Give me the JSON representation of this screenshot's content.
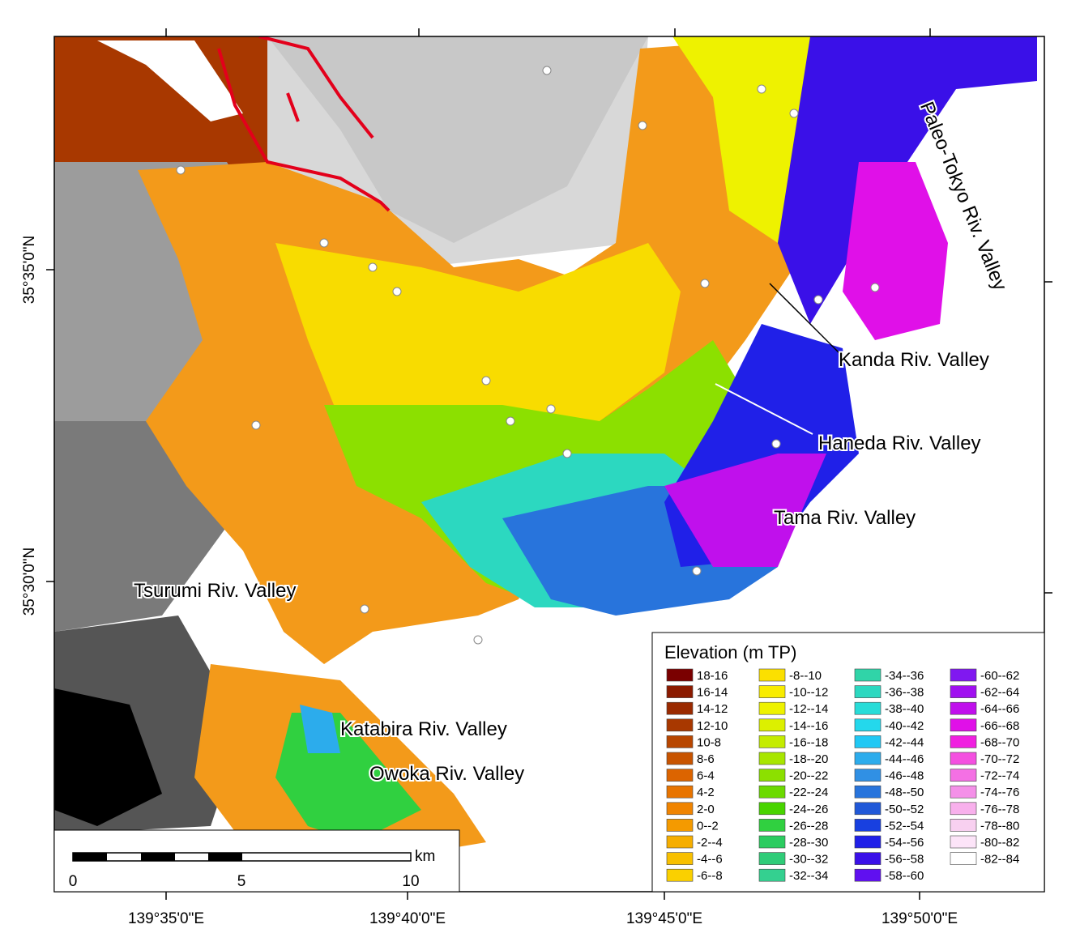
{
  "map": {
    "x_labels": [
      "139°35'0\"E",
      "139°40'0\"E",
      "139°45'0\"E",
      "139°50'0\"E"
    ],
    "y_labels": [
      "35°35'0\"N",
      "35°30'0\"N"
    ],
    "valley_labels": [
      "Paleo-Tokyo Riv. Valley",
      "Kanda Riv. Valley",
      "Haneda Riv. Valley",
      "Tama Riv. Valley",
      "Tsurumi Riv. Valley",
      "Katabira Riv. Valley",
      "Owoka Riv. Valley"
    ],
    "legend": {
      "title": "Elevation (m TP)",
      "items": [
        {
          "label": "18-16",
          "color": "#7a0000"
        },
        {
          "label": "16-14",
          "color": "#8b1a00"
        },
        {
          "label": "14-12",
          "color": "#9a2a00"
        },
        {
          "label": "12-10",
          "color": "#a83800"
        },
        {
          "label": "10-8",
          "color": "#b84600"
        },
        {
          "label": "8-6",
          "color": "#c85400"
        },
        {
          "label": "6-4",
          "color": "#dc6400"
        },
        {
          "label": "4-2",
          "color": "#e87400"
        },
        {
          "label": "2-0",
          "color": "#f08400"
        },
        {
          "label": "0--2",
          "color": "#f49a00"
        },
        {
          "label": "-2--4",
          "color": "#f6ae00"
        },
        {
          "label": "-4--6",
          "color": "#f8c000"
        },
        {
          "label": "-6--8",
          "color": "#fad000"
        },
        {
          "label": "-8--10",
          "color": "#fbe000"
        },
        {
          "label": "-10--12",
          "color": "#f8ec00"
        },
        {
          "label": "-12--14",
          "color": "#eef200"
        },
        {
          "label": "-14--16",
          "color": "#dcf000"
        },
        {
          "label": "-16--18",
          "color": "#c4ec00"
        },
        {
          "label": "-18--20",
          "color": "#a8e600"
        },
        {
          "label": "-20--22",
          "color": "#8ce000"
        },
        {
          "label": "-22--24",
          "color": "#6cda00"
        },
        {
          "label": "-24--26",
          "color": "#48d400"
        },
        {
          "label": "-26--28",
          "color": "#30d040"
        },
        {
          "label": "-28--30",
          "color": "#2ccc60"
        },
        {
          "label": "-30--32",
          "color": "#30cc78"
        },
        {
          "label": "-32--34",
          "color": "#34d090"
        },
        {
          "label": "-34--36",
          "color": "#30d4a8"
        },
        {
          "label": "-36--38",
          "color": "#2cd8c0"
        },
        {
          "label": "-38--40",
          "color": "#28dcd8"
        },
        {
          "label": "-40--42",
          "color": "#24d8ec"
        },
        {
          "label": "-42--44",
          "color": "#20c8f4"
        },
        {
          "label": "-44--46",
          "color": "#2cacec"
        },
        {
          "label": "-46--48",
          "color": "#3090e4"
        },
        {
          "label": "-48--50",
          "color": "#2874dc"
        },
        {
          "label": "-50--52",
          "color": "#2058d8"
        },
        {
          "label": "-52--54",
          "color": "#1840e0"
        },
        {
          "label": "-54--56",
          "color": "#2020e8"
        },
        {
          "label": "-56--58",
          "color": "#3a10e8"
        },
        {
          "label": "-58--60",
          "color": "#6010f0"
        },
        {
          "label": "-60--62",
          "color": "#8018f0"
        },
        {
          "label": "-62--64",
          "color": "#a010f0"
        },
        {
          "label": "-64--66",
          "color": "#c010ec"
        },
        {
          "label": "-66--68",
          "color": "#e010e8"
        },
        {
          "label": "-68--70",
          "color": "#f020e0"
        },
        {
          "label": "-70--72",
          "color": "#f450e0"
        },
        {
          "label": "-72--74",
          "color": "#f470e4"
        },
        {
          "label": "-74--76",
          "color": "#f490e8"
        },
        {
          "label": "-76--78",
          "color": "#f8b0ec"
        },
        {
          "label": "-78--80",
          "color": "#f8d0f0"
        },
        {
          "label": "-80--82",
          "color": "#fce4f8"
        },
        {
          "label": "-82--84",
          "color": "#ffffff"
        }
      ]
    },
    "scale_bar": {
      "ticks": [
        "0",
        "5",
        "10"
      ],
      "unit": "km"
    }
  }
}
